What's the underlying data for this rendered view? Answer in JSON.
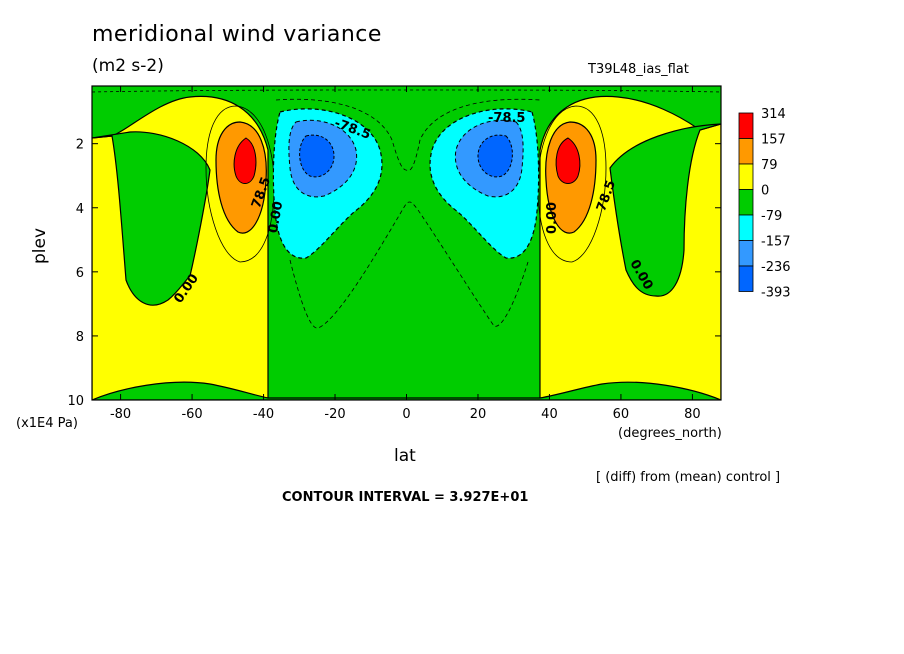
{
  "chart_data": {
    "type": "heatmap",
    "title": "meridional wind variance",
    "units": "(m2 s-2)",
    "experiment": "T39L48_ias_flat",
    "xlabel": "lat",
    "x_units": "(degrees_north)",
    "ylabel": "plev",
    "y_units": "(x1E4 Pa)",
    "xlim": [
      -88,
      88
    ],
    "ylim": [
      10,
      0.2
    ],
    "x_ticks": [
      "-80",
      "-60",
      "-40",
      "-20",
      "0",
      "20",
      "40",
      "60",
      "80"
    ],
    "y_ticks": [
      "2",
      "4",
      "6",
      "8",
      "10"
    ],
    "contour_labels": [
      "78.5",
      "0.00",
      "0.00",
      "-78.5",
      "-78.5",
      "0.00",
      "0.00",
      "78.5"
    ],
    "legend": {
      "levels": [
        "314",
        "157",
        "79",
        "0",
        "-79",
        "-157",
        "-236",
        "-393"
      ],
      "colors": [
        "#ff0000",
        "#ff9900",
        "#ffff00",
        "#00cc00",
        "#00ffff",
        "#3399ff",
        "#0066ff"
      ]
    },
    "note": "[ (diff) from (mean) control ]",
    "contour_interval": "CONTOUR INTERVAL = 3.927E+01",
    "features": [
      {
        "lat": -46,
        "plev": 2.4,
        "value": 314
      },
      {
        "lat": 46,
        "plev": 2.4,
        "value": 314
      },
      {
        "lat": -28,
        "plev": 2.3,
        "value": -393
      },
      {
        "lat": 28,
        "plev": 2.3,
        "value": -393
      }
    ]
  }
}
